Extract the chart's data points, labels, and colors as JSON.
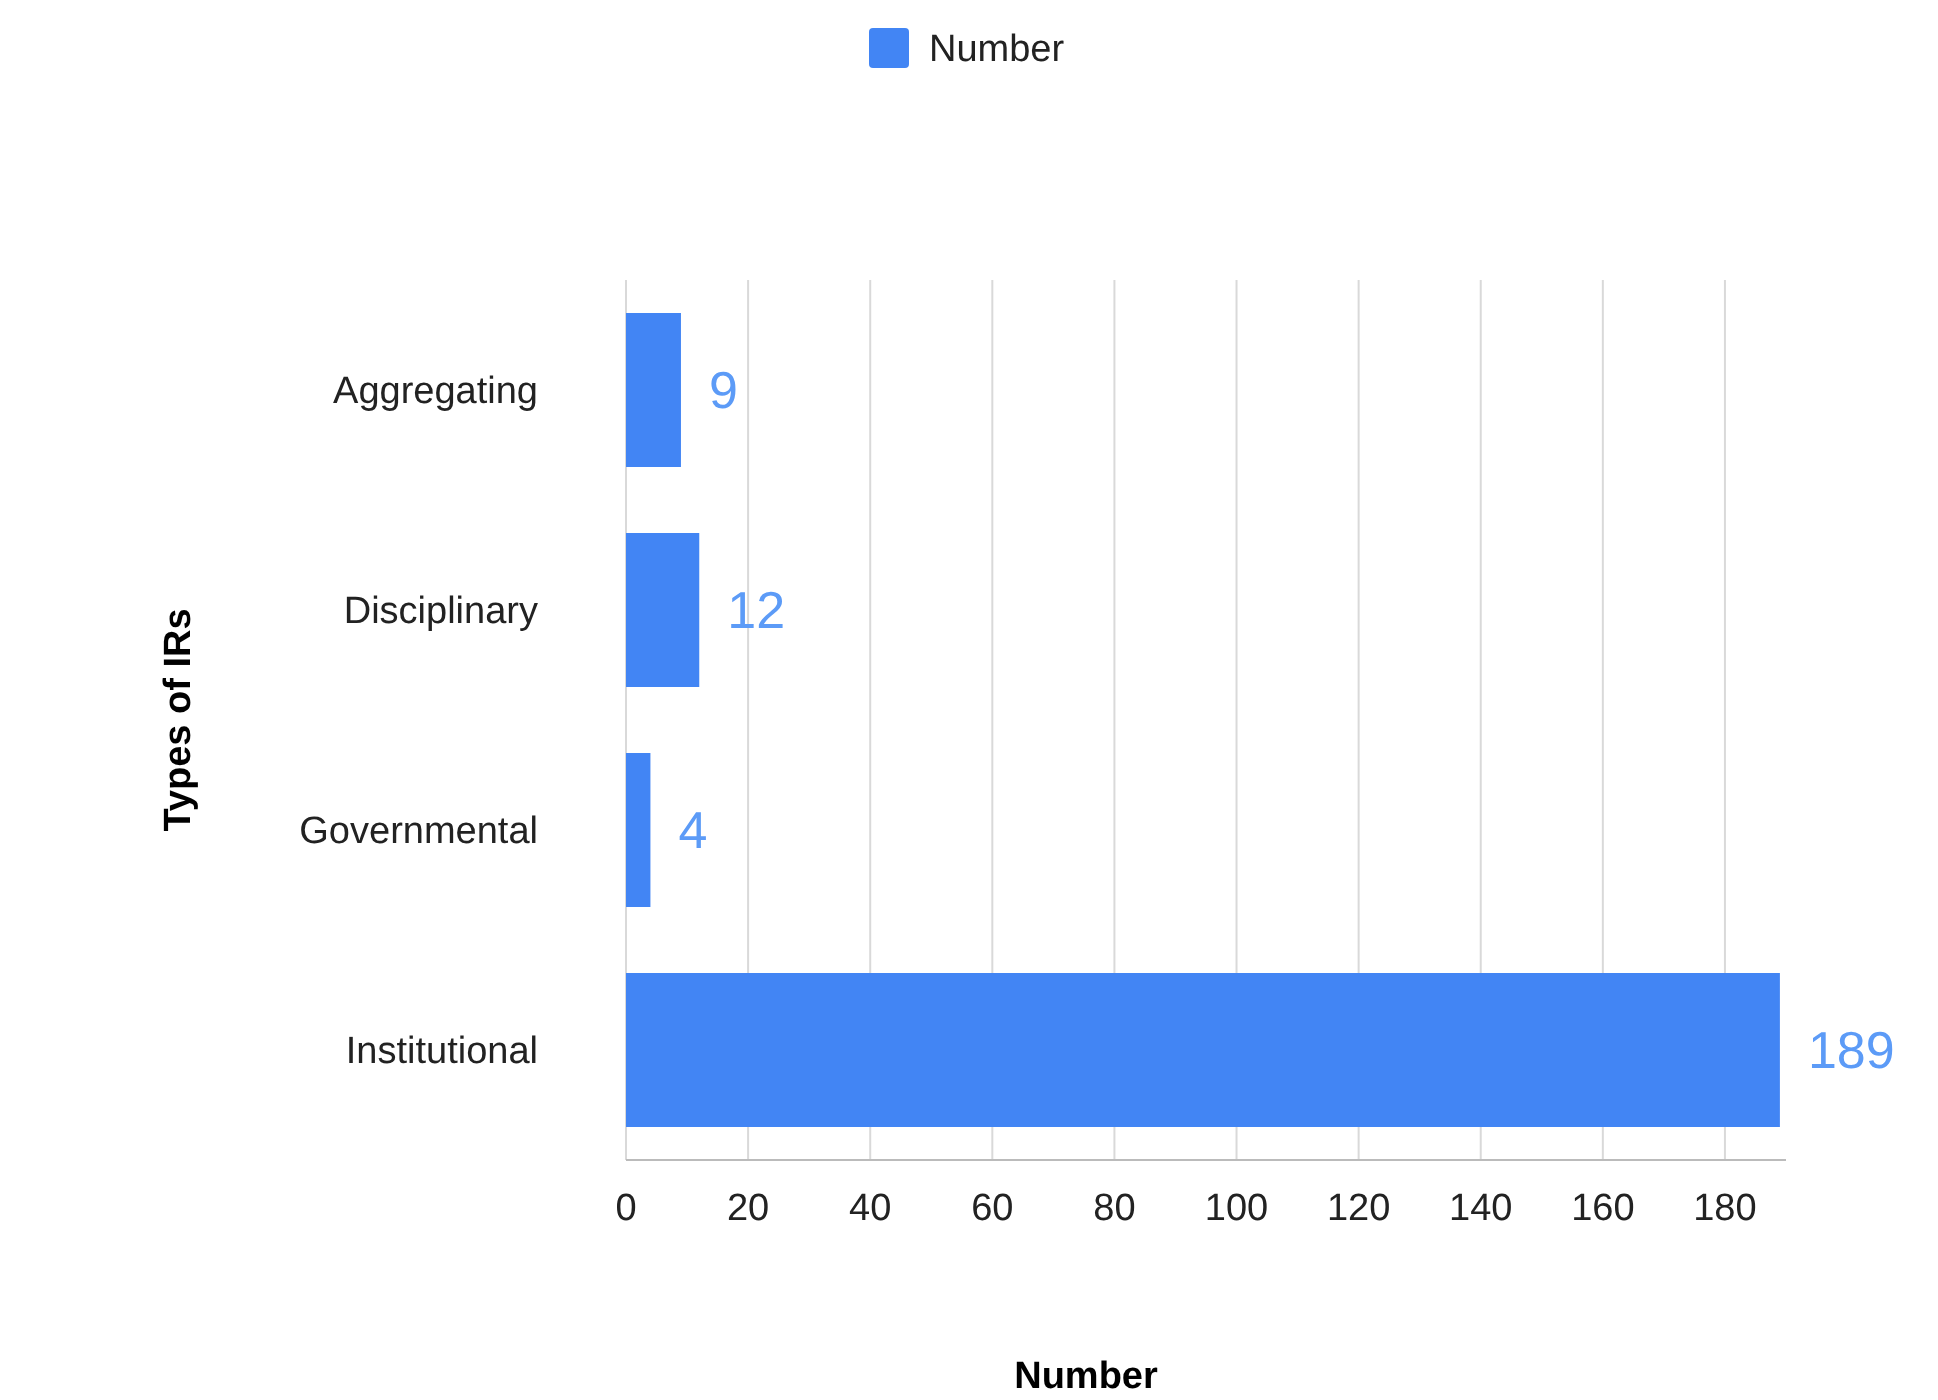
{
  "chart_data": {
    "type": "bar",
    "orientation": "horizontal",
    "xlabel": "Number",
    "ylabel": "Types of IRs",
    "categories": [
      "Aggregating",
      "Disciplinary",
      "Governmental",
      "Institutional"
    ],
    "series": [
      {
        "name": "Number",
        "color": "#4285f4",
        "values": [
          9,
          12,
          4,
          189
        ]
      }
    ],
    "xlim": [
      0,
      190
    ],
    "xticks": [
      0,
      20,
      40,
      60,
      80,
      100,
      120,
      140,
      160,
      180
    ],
    "grid": "x",
    "legend": "top",
    "data_labels": true
  }
}
